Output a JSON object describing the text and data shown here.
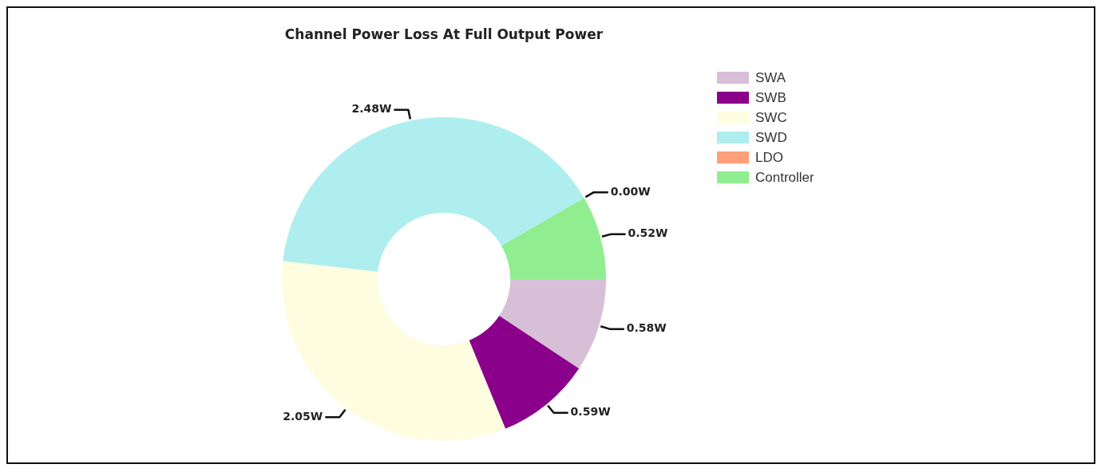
{
  "chart_data": {
    "type": "donut",
    "title": "Channel Power Loss At Full Output Power",
    "categories": [
      "SWA",
      "SWB",
      "SWC",
      "SWD",
      "LDO",
      "Controller"
    ],
    "values": [
      0.58,
      0.59,
      2.05,
      2.48,
      0.0,
      0.52
    ],
    "value_labels": [
      "0.58W",
      "0.59W",
      "2.05W",
      "2.48W",
      "0.00W",
      "0.52W"
    ],
    "colors": [
      "#d8bfd8",
      "#8b008b",
      "#fffde0",
      "#afeeee",
      "#ffa07a",
      "#90ee90"
    ],
    "legend": "top right"
  }
}
